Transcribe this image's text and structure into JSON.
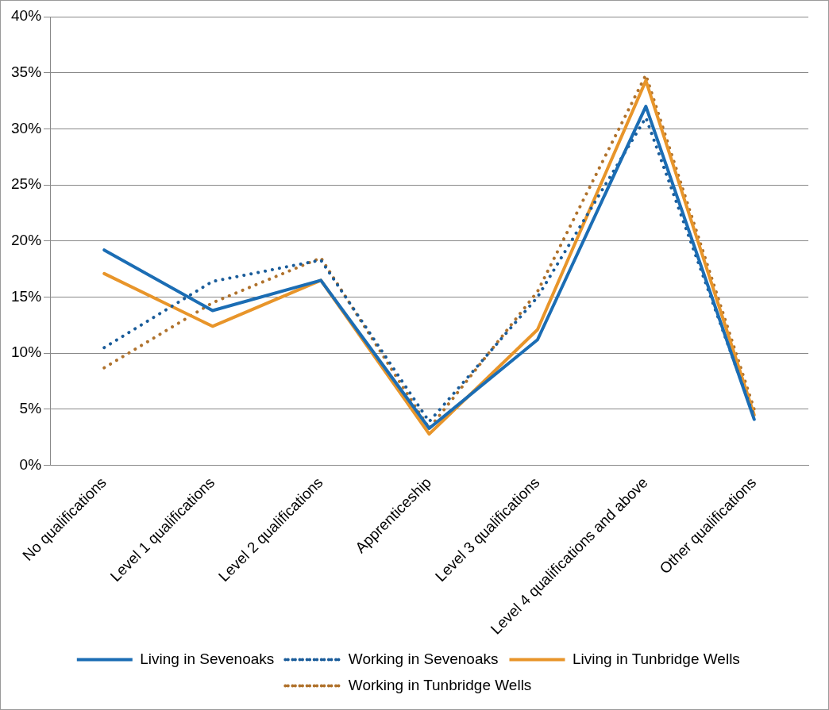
{
  "chart_data": {
    "type": "line",
    "categories": [
      "No qualifications",
      "Level 1 qualifications",
      "Level 2 qualifications",
      "Apprenticeship",
      "Level 3 qualifications",
      "Level 4 qualifications and above",
      "Other qualifications"
    ],
    "series": [
      {
        "name": "Living in Sevenoaks",
        "color": "#1b6db4",
        "line_style": "solid",
        "values": [
          19.2,
          13.8,
          16.5,
          3.3,
          11.2,
          32.0,
          4.1
        ]
      },
      {
        "name": "Working in Sevenoaks",
        "color": "#1a5c9a",
        "line_style": "dotted",
        "values": [
          10.5,
          16.4,
          18.3,
          3.9,
          15.0,
          31.0,
          4.3
        ]
      },
      {
        "name": "Living in Tunbridge Wells",
        "color": "#e8952a",
        "line_style": "solid",
        "values": [
          17.1,
          12.4,
          16.5,
          2.8,
          12.1,
          34.3,
          4.5
        ]
      },
      {
        "name": "Working in Tunbridge Wells",
        "color": "#b0722c",
        "line_style": "dotted",
        "values": [
          8.7,
          14.5,
          18.5,
          3.3,
          15.5,
          34.8,
          5.0
        ]
      }
    ],
    "ylim": [
      0,
      40
    ],
    "yticks": [
      {
        "value": 0,
        "label": "0%"
      },
      {
        "value": 5,
        "label": "5%"
      },
      {
        "value": 10,
        "label": "10%"
      },
      {
        "value": 15,
        "label": "15%"
      },
      {
        "value": 20,
        "label": "20%"
      },
      {
        "value": 25,
        "label": "25%"
      },
      {
        "value": 30,
        "label": "30%"
      },
      {
        "value": 35,
        "label": "35%"
      },
      {
        "value": 40,
        "label": "40%"
      }
    ],
    "grid": "y",
    "legend": "bottom",
    "marker": "none"
  }
}
